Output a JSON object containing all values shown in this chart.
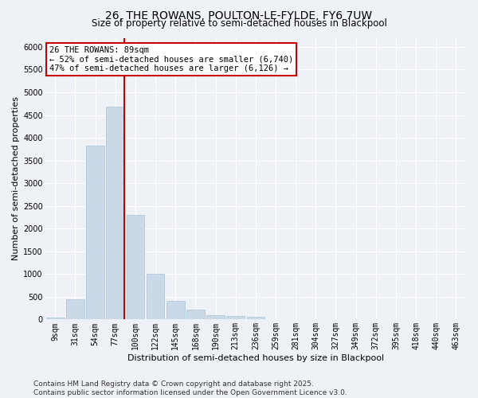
{
  "title": "26, THE ROWANS, POULTON-LE-FYLDE, FY6 7UW",
  "subtitle": "Size of property relative to semi-detached houses in Blackpool",
  "xlabel": "Distribution of semi-detached houses by size in Blackpool",
  "ylabel": "Number of semi-detached properties",
  "bar_labels": [
    "9sqm",
    "31sqm",
    "54sqm",
    "77sqm",
    "100sqm",
    "122sqm",
    "145sqm",
    "168sqm",
    "190sqm",
    "213sqm",
    "236sqm",
    "259sqm",
    "281sqm",
    "304sqm",
    "327sqm",
    "349sqm",
    "372sqm",
    "395sqm",
    "418sqm",
    "440sqm",
    "463sqm"
  ],
  "bar_values": [
    50,
    440,
    3820,
    4680,
    2300,
    1000,
    415,
    210,
    100,
    75,
    65,
    0,
    0,
    0,
    0,
    0,
    0,
    0,
    0,
    0,
    0
  ],
  "bar_color": "#c9d9e8",
  "bar_edgecolor": "#a8c4d8",
  "annotation_label": "26 THE ROWANS: 89sqm",
  "annotation_smaller": "← 52% of semi-detached houses are smaller (6,740)",
  "annotation_larger": "47% of semi-detached houses are larger (6,126) →",
  "annotation_box_color": "#ffffff",
  "annotation_box_edgecolor": "#cc0000",
  "vline_color": "#cc0000",
  "vline_x": 3.45,
  "ylim": [
    0,
    6200
  ],
  "yticks": [
    0,
    500,
    1000,
    1500,
    2000,
    2500,
    3000,
    3500,
    4000,
    4500,
    5000,
    5500,
    6000
  ],
  "background_color": "#eef2f7",
  "grid_color": "#ffffff",
  "footer_line1": "Contains HM Land Registry data © Crown copyright and database right 2025.",
  "footer_line2": "Contains public sector information licensed under the Open Government Licence v3.0.",
  "title_fontsize": 10,
  "subtitle_fontsize": 8.5,
  "axis_label_fontsize": 8,
  "tick_fontsize": 7,
  "footer_fontsize": 6.5,
  "annotation_fontsize": 7.5
}
